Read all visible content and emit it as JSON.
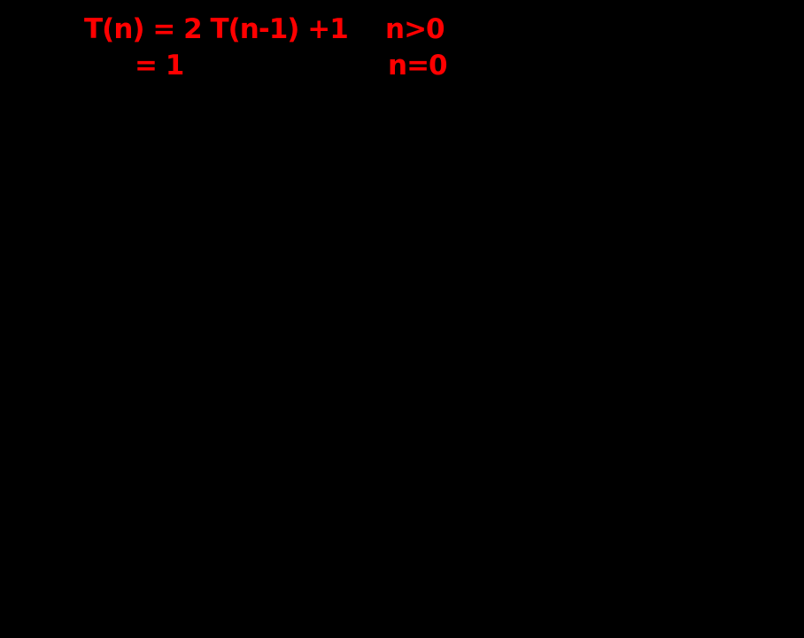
{
  "slide": {
    "background_color": "#000000",
    "text_color": "#ff0000",
    "recurrence": {
      "case1": {
        "expression": "T(n) = 2 T(n-1) +1",
        "condition": "n>0"
      },
      "case2": {
        "expression": "= 1",
        "condition": "n=0"
      }
    }
  }
}
